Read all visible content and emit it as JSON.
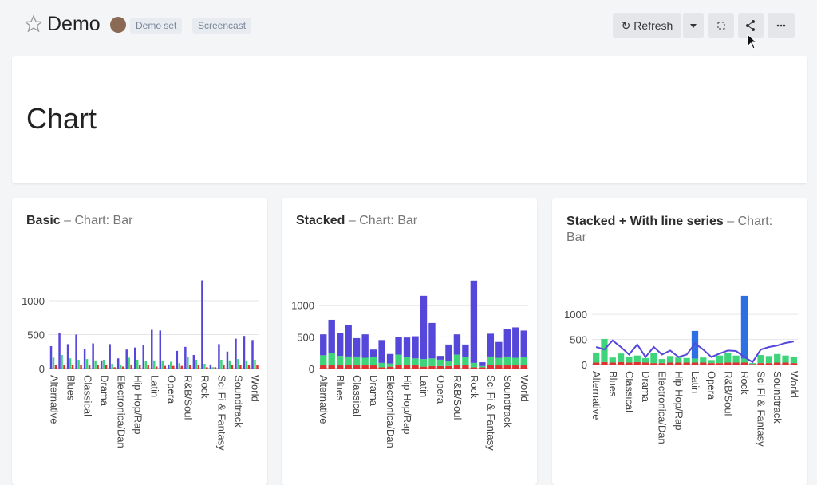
{
  "header": {
    "title": "Demo",
    "tags": [
      "Demo set",
      "Screencast"
    ],
    "buttons": {
      "refresh": "Refresh"
    }
  },
  "text_card": {
    "heading": "Chart"
  },
  "chart_data": [
    {
      "type": "bar",
      "title": "Basic",
      "subtitle": "– Chart: Bar",
      "stacked": false,
      "grid": true,
      "categories": [
        "Alternative",
        null,
        "Blues",
        null,
        "Classical",
        null,
        "Drama",
        null,
        "Electronica/Dan",
        null,
        "Hip Hop/Rap",
        null,
        "Latin",
        null,
        "Opera",
        null,
        "R&B/Soul",
        null,
        "Rock",
        null,
        "Sci Fi & Fantasy",
        null,
        "Soundtrack",
        null,
        "World"
      ],
      "ylim": [
        0,
        1400
      ],
      "yticks": [
        0,
        500,
        1000
      ],
      "series": [
        {
          "color": "#5547d9",
          "values": [
            330,
            520,
            360,
            500,
            290,
            370,
            120,
            360,
            150,
            280,
            310,
            350,
            570,
            560,
            60,
            260,
            320,
            200,
            1300,
            60,
            360,
            250,
            440,
            480,
            420
          ]
        },
        {
          "color": "#3ed47a",
          "values": [
            160,
            200,
            150,
            130,
            140,
            120,
            130,
            70,
            50,
            160,
            130,
            110,
            120,
            120,
            100,
            80,
            170,
            130,
            70,
            20,
            130,
            120,
            140,
            120,
            130
          ]
        },
        {
          "color": "#e0302f",
          "values": [
            50,
            50,
            50,
            60,
            50,
            50,
            50,
            20,
            30,
            60,
            50,
            50,
            30,
            40,
            40,
            40,
            50,
            50,
            20,
            20,
            60,
            50,
            50,
            50,
            50
          ]
        }
      ]
    },
    {
      "type": "bar",
      "title": "Stacked",
      "subtitle": "– Chart: Bar",
      "stacked": true,
      "grid": true,
      "categories": [
        "Alternative",
        null,
        "Blues",
        null,
        "Classical",
        null,
        "Drama",
        null,
        "Electronica/Dan",
        null,
        "Hip Hop/Rap",
        null,
        "Latin",
        null,
        "Opera",
        null,
        "R&B/Soul",
        null,
        "Rock",
        null,
        "Sci Fi & Fantasy",
        null,
        "Soundtrack",
        null,
        "World"
      ],
      "ylim": [
        0,
        1400
      ],
      "yticks": [
        0,
        500,
        1000
      ],
      "series": [
        {
          "color": "#e0302f",
          "values": [
            50,
            50,
            50,
            60,
            50,
            50,
            50,
            20,
            30,
            60,
            50,
            50,
            30,
            40,
            40,
            40,
            50,
            50,
            20,
            20,
            60,
            50,
            50,
            50,
            50
          ]
        },
        {
          "color": "#3ed47a",
          "values": [
            160,
            200,
            150,
            130,
            140,
            120,
            130,
            70,
            50,
            160,
            130,
            110,
            120,
            120,
            100,
            80,
            170,
            130,
            70,
            20,
            130,
            120,
            140,
            120,
            130
          ]
        },
        {
          "color": "#5547d9",
          "values": [
            330,
            520,
            360,
            500,
            290,
            370,
            120,
            360,
            150,
            280,
            310,
            350,
            1000,
            560,
            60,
            260,
            320,
            200,
            1300,
            60,
            360,
            250,
            440,
            480,
            420
          ]
        }
      ]
    },
    {
      "type": "bar",
      "title": "Stacked + With line series",
      "subtitle": "– Chart: Bar",
      "stacked": true,
      "grid": true,
      "categories": [
        "Alternative",
        null,
        "Blues",
        null,
        "Classical",
        null,
        "Drama",
        null,
        "Electronica/Dan",
        null,
        "Hip Hop/Rap",
        null,
        "Latin",
        null,
        "Opera",
        null,
        "R&B/Soul",
        null,
        "Rock",
        null,
        "Sci Fi & Fantasy",
        null,
        "Soundtrack",
        null,
        "World"
      ],
      "ylim": [
        0,
        1400
      ],
      "yticks": [
        0,
        500,
        1000
      ],
      "series": [
        {
          "color": "#e0302f",
          "values": [
            40,
            50,
            40,
            50,
            40,
            50,
            40,
            30,
            30,
            40,
            40,
            40,
            40,
            40,
            30,
            30,
            40,
            40,
            40,
            10,
            30,
            30,
            40,
            40,
            30
          ]
        },
        {
          "color": "#3ed47a",
          "values": [
            200,
            460,
            100,
            170,
            120,
            130,
            90,
            200,
            80,
            130,
            100,
            90,
            80,
            100,
            60,
            150,
            200,
            140,
            80,
            20,
            160,
            140,
            170,
            140,
            120
          ]
        },
        {
          "color": "#2f6fe4",
          "values": [
            0,
            0,
            0,
            0,
            0,
            0,
            0,
            0,
            0,
            0,
            0,
            0,
            550,
            0,
            0,
            0,
            0,
            0,
            1250,
            0,
            0,
            0,
            0,
            0,
            0
          ]
        },
        {
          "color": "#5547d9",
          "type": "line",
          "values": [
            350,
            300,
            480,
            350,
            200,
            400,
            150,
            350,
            200,
            280,
            150,
            200,
            420,
            300,
            150,
            220,
            280,
            270,
            150,
            50,
            300,
            350,
            380,
            430,
            460
          ]
        }
      ]
    }
  ]
}
